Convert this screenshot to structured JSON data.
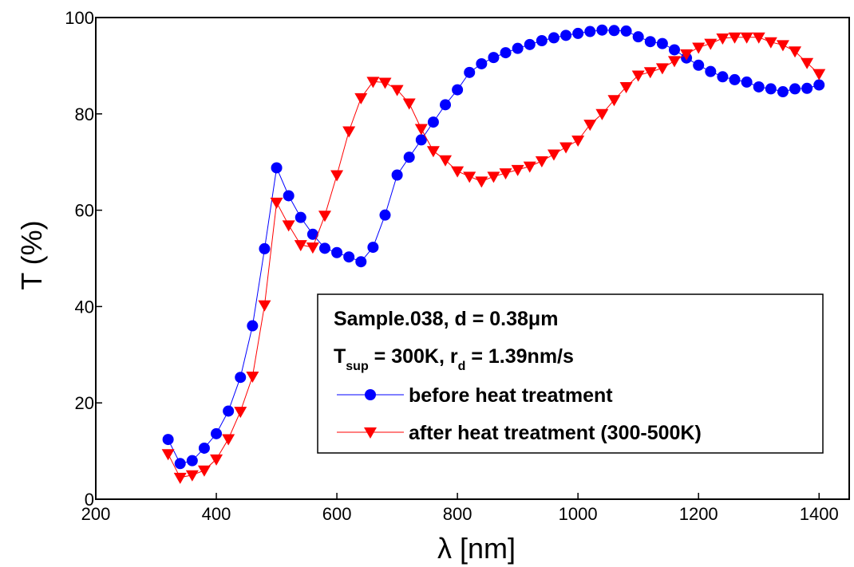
{
  "chart_data": {
    "type": "line",
    "xlabel": "λ [nm]",
    "ylabel": "T (%)",
    "xlim": [
      200,
      1450
    ],
    "ylim": [
      0,
      100
    ],
    "xticks": [
      200,
      400,
      600,
      800,
      1000,
      1200,
      1400
    ],
    "yticks": [
      0,
      20,
      40,
      60,
      80,
      100
    ],
    "grid": false,
    "legend": {
      "placement": "lower-right",
      "line1": "Sample.038, d = 0.38μm",
      "line2": {
        "t": "T",
        "t_sub": "sup",
        "mid": " = 300K, r",
        "r_sub": "d",
        "end": " = 1.39nm/s"
      }
    },
    "series": [
      {
        "name": "before heat treatment",
        "color": "#0000ff",
        "marker": "circle",
        "x": [
          320,
          340,
          360,
          380,
          400,
          420,
          440,
          460,
          480,
          500,
          520,
          540,
          560,
          580,
          600,
          620,
          640,
          660,
          680,
          700,
          720,
          740,
          760,
          780,
          800,
          820,
          840,
          860,
          880,
          900,
          920,
          940,
          960,
          980,
          1000,
          1020,
          1040,
          1060,
          1080,
          1100,
          1120,
          1140,
          1160,
          1180,
          1200,
          1220,
          1240,
          1260,
          1280,
          1300,
          1320,
          1340,
          1360,
          1380,
          1400
        ],
        "values": [
          12.4,
          7.4,
          8.0,
          10.6,
          13.6,
          18.3,
          25.3,
          36.0,
          52.0,
          68.8,
          63.0,
          58.5,
          55.0,
          52.1,
          51.2,
          50.3,
          49.3,
          52.3,
          59.0,
          67.3,
          71.0,
          74.6,
          78.3,
          81.9,
          85.0,
          88.6,
          90.4,
          91.7,
          92.7,
          93.6,
          94.4,
          95.2,
          95.8,
          96.3,
          96.7,
          97.1,
          97.4,
          97.3,
          97.2,
          96.0,
          95.0,
          94.6,
          93.3,
          91.6,
          90.1,
          88.8,
          87.7,
          87.1,
          86.6,
          85.6,
          85.2,
          84.6,
          85.2,
          85.3,
          86.0
        ]
      },
      {
        "name": "after heat treatment (300-500K)",
        "color": "#ff0000",
        "marker": "triangle-down",
        "x": [
          320,
          340,
          360,
          380,
          400,
          420,
          440,
          460,
          480,
          500,
          520,
          540,
          560,
          580,
          600,
          620,
          640,
          660,
          680,
          700,
          720,
          740,
          760,
          780,
          800,
          820,
          840,
          860,
          880,
          900,
          920,
          940,
          960,
          980,
          1000,
          1020,
          1040,
          1060,
          1080,
          1100,
          1120,
          1140,
          1160,
          1180,
          1200,
          1220,
          1240,
          1260,
          1280,
          1300,
          1320,
          1340,
          1360,
          1380,
          1400
        ],
        "values": [
          9.4,
          4.5,
          5.0,
          6.0,
          8.3,
          12.5,
          18.2,
          25.5,
          40.3,
          61.6,
          56.9,
          52.8,
          52.3,
          58.9,
          67.3,
          76.4,
          83.3,
          86.7,
          86.5,
          85.0,
          82.2,
          76.9,
          72.3,
          70.4,
          68.1,
          67.0,
          66.0,
          67.0,
          67.7,
          68.4,
          69.1,
          70.2,
          71.6,
          73.1,
          74.5,
          77.8,
          80.0,
          82.9,
          85.6,
          88.0,
          88.7,
          89.5,
          91.0,
          92.4,
          93.8,
          94.6,
          95.7,
          95.9,
          95.9,
          95.9,
          94.9,
          94.3,
          93.0,
          90.6,
          88.3
        ]
      }
    ]
  }
}
